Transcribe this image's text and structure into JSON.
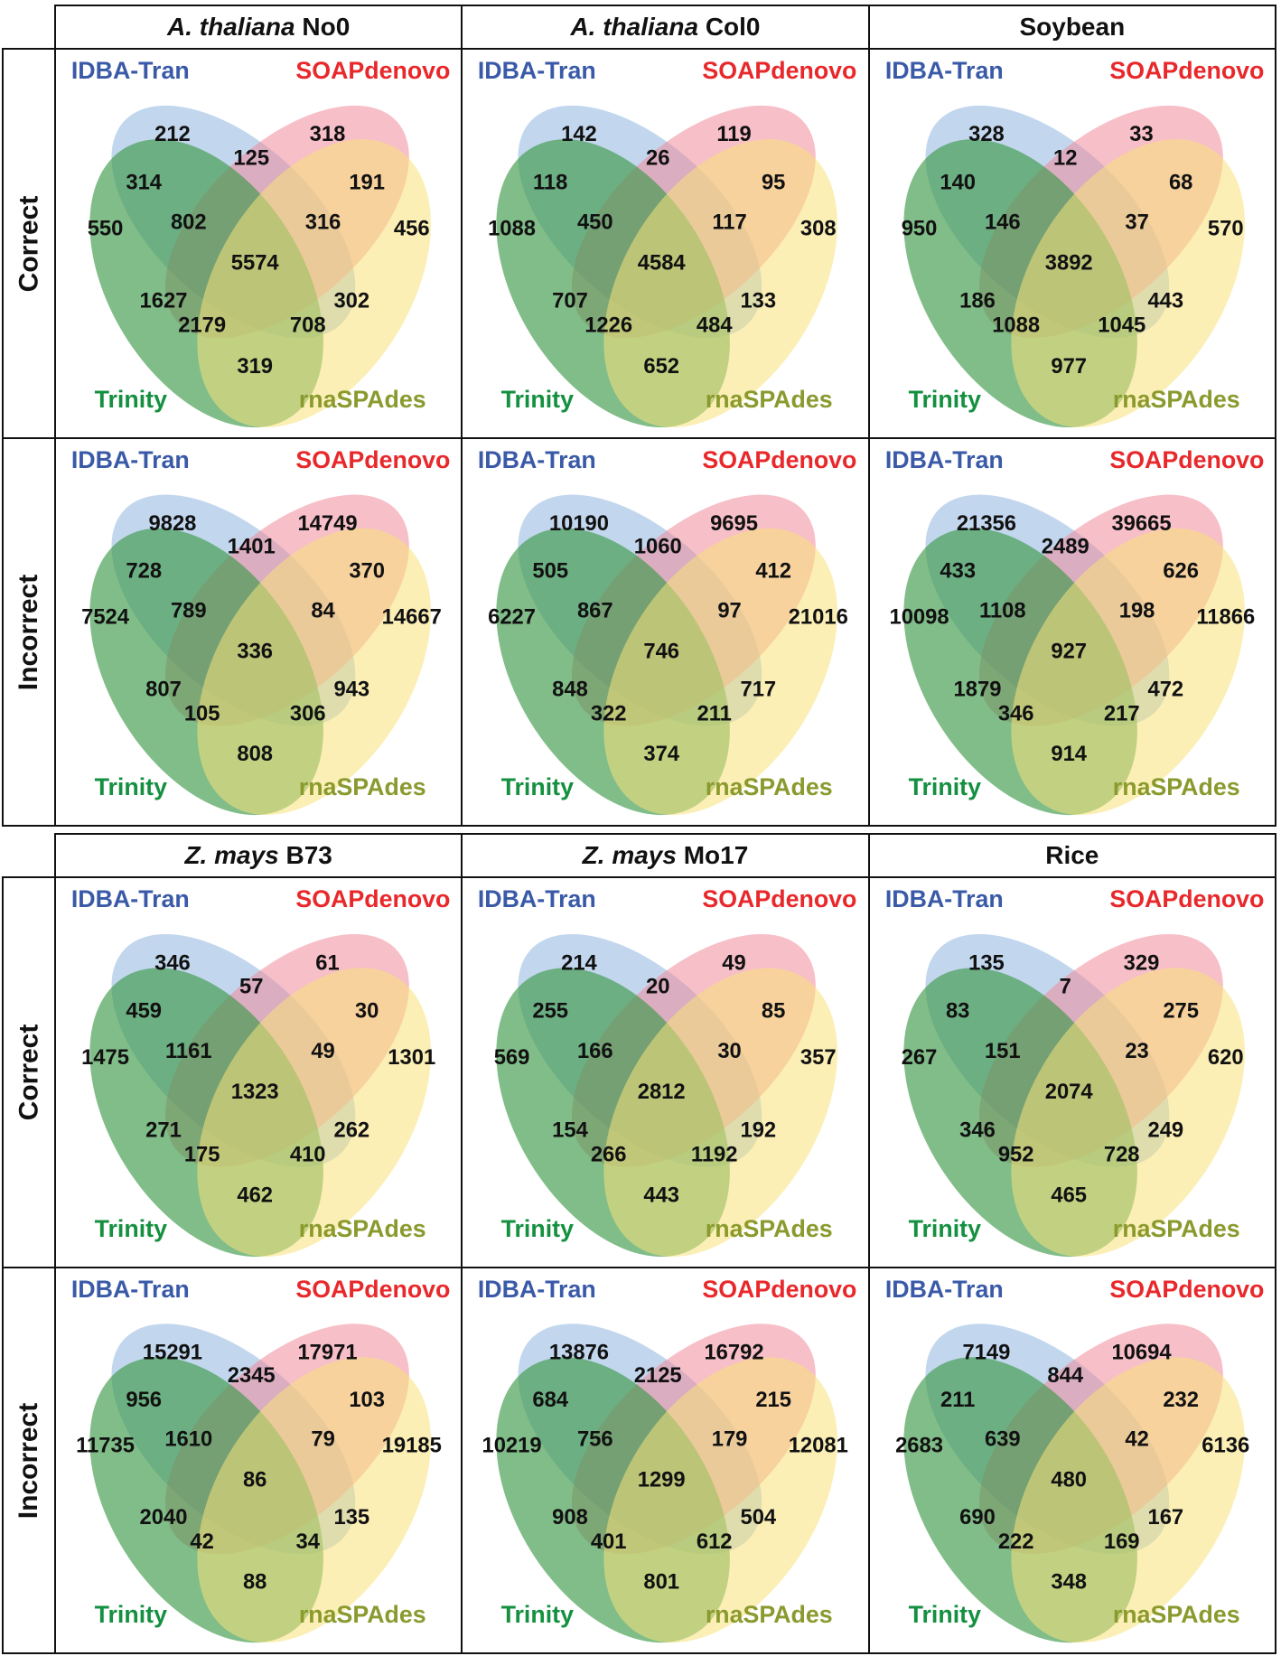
{
  "chart_data": {
    "type": "venn",
    "title": "",
    "set_labels": [
      "IDBA-Tran",
      "SOAPdenovo",
      "Trinity",
      "rnaSPAdes"
    ],
    "set_colors": {
      "IDBA-Tran": "#3a5aa8",
      "SOAPdenovo": "#e8282b",
      "Trinity": "#149040",
      "rnaSPAdes": "#8a9a2e"
    },
    "fill_colors": {
      "IDBA-Tran": "#8fb7e0",
      "SOAPdenovo": "#f08a9a",
      "Trinity": "#3e9a4a",
      "rnaSPAdes": "#f8e27a"
    },
    "region_keys": [
      "I",
      "S",
      "IS",
      "IT",
      "SR",
      "T",
      "ISTR_IT_S",
      "ISR",
      "R",
      "ISTR",
      "TS",
      "TR_ISR",
      "ITR",
      "STR",
      "TR"
    ],
    "region_names": {
      "I": "IDBA-Tran only",
      "S": "SOAPdenovo only",
      "IS": "IDBA-Tran & SOAPdenovo",
      "IT": "IDBA-Tran & Trinity",
      "SR": "SOAPdenovo & rnaSPAdes",
      "T": "Trinity only",
      "IST": "IDBA-Tran & SOAPdenovo & Trinity",
      "ISR": "IDBA-Tran & SOAPdenovo & rnaSPAdes",
      "R": "rnaSPAdes only",
      "ISTR": "All four",
      "ST": "SOAPdenovo & Trinity",
      "IR": "IDBA-Tran & rnaSPAdes",
      "STR": "SOAPdenovo & Trinity & rnaSPAdes",
      "ITR": "IDBA-Tran & Trinity & rnaSPAdes",
      "TR": "Trinity & rnaSPAdes"
    },
    "row_labels": [
      "Correct",
      "Incorrect"
    ],
    "blocks": [
      {
        "columns": [
          "A. thaliana No0",
          "A. thaliana Col0",
          "Soybean"
        ],
        "panels": [
          {
            "species": "A. thaliana No0",
            "type": "Correct",
            "values": {
              "I": 212,
              "S": 318,
              "IS": 125,
              "IT": 314,
              "SR": 191,
              "T": 550,
              "IST": 802,
              "ISR": 316,
              "R": 456,
              "ISTR": 5574,
              "ST": 1627,
              "IR": 302,
              "STR": 2179,
              "ITR": 708,
              "TR": 319
            }
          },
          {
            "species": "A. thaliana Col0",
            "type": "Correct",
            "values": {
              "I": 142,
              "S": 119,
              "IS": 26,
              "IT": 118,
              "SR": 95,
              "T": 1088,
              "IST": 450,
              "ISR": 117,
              "R": 308,
              "ISTR": 4584,
              "ST": 707,
              "IR": 133,
              "STR": 1226,
              "ITR": 484,
              "TR": 652
            }
          },
          {
            "species": "Soybean",
            "type": "Correct",
            "values": {
              "I": 328,
              "S": 33,
              "IS": 12,
              "IT": 140,
              "SR": 68,
              "T": 950,
              "IST": 146,
              "ISR": 37,
              "R": 570,
              "ISTR": 3892,
              "ST": 186,
              "IR": 443,
              "STR": 1088,
              "ITR": 1045,
              "TR": 977
            }
          },
          {
            "species": "A. thaliana No0",
            "type": "Incorrect",
            "values": {
              "I": 9828,
              "S": 14749,
              "IS": 1401,
              "IT": 728,
              "SR": 370,
              "T": 7524,
              "IST": 789,
              "ISR": 84,
              "R": 14667,
              "ISTR": 336,
              "ST": 807,
              "IR": 943,
              "STR": 105,
              "ITR": 306,
              "TR": 808
            }
          },
          {
            "species": "A. thaliana Col0",
            "type": "Incorrect",
            "values": {
              "I": 10190,
              "S": 9695,
              "IS": 1060,
              "IT": 505,
              "SR": 412,
              "T": 6227,
              "IST": 867,
              "ISR": 97,
              "R": 21016,
              "ISTR": 746,
              "ST": 848,
              "IR": 717,
              "STR": 322,
              "ITR": 211,
              "TR": 374
            }
          },
          {
            "species": "Soybean",
            "type": "Incorrect",
            "values": {
              "I": 21356,
              "S": 39665,
              "IS": 2489,
              "IT": 433,
              "SR": 626,
              "T": 10098,
              "IST": 1108,
              "ISR": 198,
              "R": 11866,
              "ISTR": 927,
              "ST": 1879,
              "IR": 472,
              "STR": 346,
              "ITR": 217,
              "TR": 914
            }
          }
        ]
      },
      {
        "columns": [
          "Z. mays B73",
          "Z. mays Mo17",
          "Rice"
        ],
        "panels": [
          {
            "species": "Z. mays B73",
            "type": "Correct",
            "values": {
              "I": 346,
              "S": 61,
              "IS": 57,
              "IT": 459,
              "SR": 30,
              "T": 1475,
              "IST": 1161,
              "ISR": 49,
              "R": 1301,
              "ISTR": 1323,
              "ST": 271,
              "IR": 262,
              "STR": 175,
              "ITR": 410,
              "TR": 462
            }
          },
          {
            "species": "Z. mays Mo17",
            "type": "Correct",
            "values": {
              "I": 214,
              "S": 49,
              "IS": 20,
              "IT": 255,
              "SR": 85,
              "T": 569,
              "IST": 166,
              "ISR": 30,
              "R": 357,
              "ISTR": 2812,
              "ST": 154,
              "IR": 192,
              "STR": 266,
              "ITR": 1192,
              "TR": 443
            }
          },
          {
            "species": "Rice",
            "type": "Correct",
            "values": {
              "I": 135,
              "S": 329,
              "IS": 7,
              "IT": 83,
              "SR": 275,
              "T": 267,
              "IST": 151,
              "ISR": 23,
              "R": 620,
              "ISTR": 2074,
              "ST": 346,
              "IR": 249,
              "STR": 952,
              "ITR": 728,
              "TR": 465
            }
          },
          {
            "species": "Z. mays B73",
            "type": "Incorrect",
            "values": {
              "I": 15291,
              "S": 17971,
              "IS": 2345,
              "IT": 956,
              "SR": 103,
              "T": 11735,
              "IST": 1610,
              "ISR": 79,
              "R": 19185,
              "ISTR": 86,
              "ST": 2040,
              "IR": 135,
              "STR": 42,
              "ITR": 34,
              "TR": 88
            }
          },
          {
            "species": "Z. mays Mo17",
            "type": "Incorrect",
            "values": {
              "I": 13876,
              "S": 16792,
              "IS": 2125,
              "IT": 684,
              "SR": 215,
              "T": 10219,
              "IST": 756,
              "ISR": 179,
              "R": 12081,
              "ISTR": 1299,
              "ST": 908,
              "IR": 504,
              "STR": 401,
              "ITR": 612,
              "TR": 801
            }
          },
          {
            "species": "Rice",
            "type": "Incorrect",
            "values": {
              "I": 7149,
              "S": 10694,
              "IS": 844,
              "IT": 211,
              "SR": 232,
              "T": 2683,
              "IST": 639,
              "ISR": 42,
              "R": 6136,
              "ISTR": 480,
              "ST": 690,
              "IR": 167,
              "STR": 222,
              "ITR": 169,
              "TR": 348
            }
          }
        ]
      }
    ]
  },
  "headers": {
    "top": [
      {
        "italic": "A. thaliana",
        "plain": " No0"
      },
      {
        "italic": "A. thaliana",
        "plain": " Col0"
      },
      {
        "italic": "",
        "plain": "Soybean"
      }
    ],
    "bottom": [
      {
        "italic": "Z. mays",
        "plain": " B73"
      },
      {
        "italic": "Z. mays",
        "plain": " Mo17"
      },
      {
        "italic": "",
        "plain": "Rice"
      }
    ]
  },
  "row_labels": {
    "correct": "Correct",
    "incorrect": "Incorrect"
  },
  "legend": {
    "idba": "IDBA-Tran",
    "soap": "SOAPdenovo",
    "trinity": "Trinity",
    "rnaspades": "rnaSPAdes"
  }
}
